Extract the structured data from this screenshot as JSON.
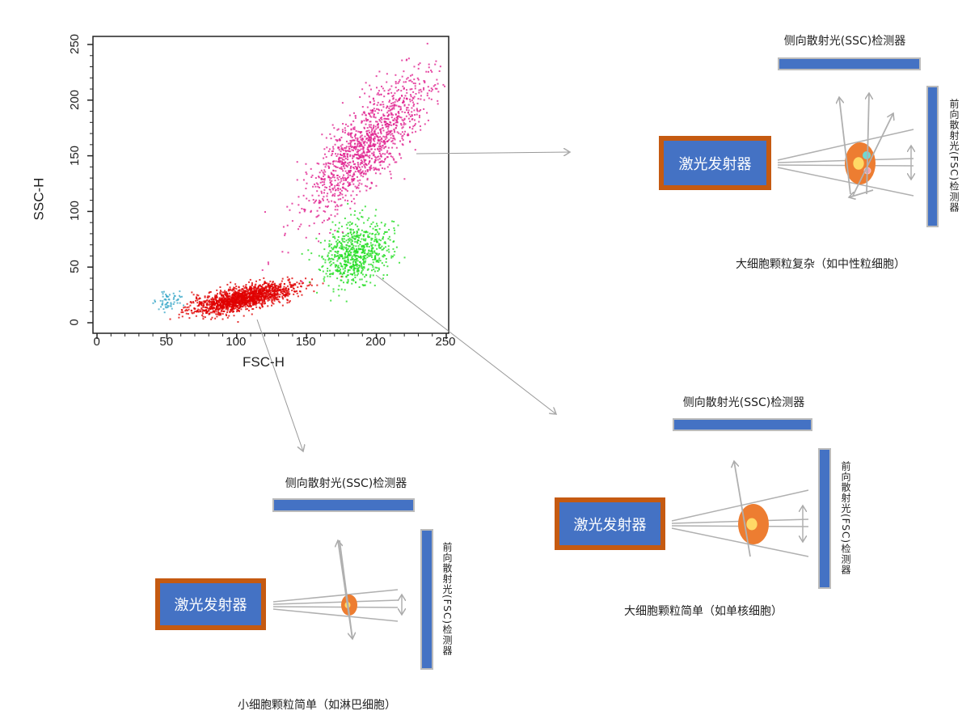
{
  "chart_data": {
    "type": "scatter",
    "xlabel": "FSC-H",
    "ylabel": "SSC-H",
    "xlim": [
      0,
      250
    ],
    "ylim": [
      0,
      250
    ],
    "x_ticks": [
      "0",
      "50",
      "100",
      "150",
      "200",
      "250"
    ],
    "y_ticks": [
      "0",
      "50",
      "100",
      "150",
      "200",
      "250"
    ],
    "grid": false,
    "clusters": [
      {
        "color": "#e00000",
        "center": [
          105,
          22
        ],
        "spread": [
          18,
          5
        ],
        "slope": 0.25,
        "count": 1600
      },
      {
        "color": "#22dd22",
        "center": [
          185,
          62
        ],
        "spread": [
          12,
          14
        ],
        "slope": 0.3,
        "count": 700
      },
      {
        "color": "#e0208f",
        "center": [
          193,
          160
        ],
        "spread": [
          13,
          32
        ],
        "slope": 1.6,
        "count": 1300
      },
      {
        "color": "#3aa8c8",
        "center": [
          52,
          20
        ],
        "spread": [
          5,
          4
        ],
        "slope": 0,
        "count": 60
      }
    ]
  },
  "diagrams": [
    {
      "ssc_label": "侧向散射光(SSC)检测器",
      "fsc_label": "前向散射光(FSC)检测器",
      "laser_label": "激光发射器",
      "caption": "大细胞颗粒复杂（如中性粒细胞）"
    },
    {
      "ssc_label": "侧向散射光(SSC)检测器",
      "fsc_label": "前向散射光(FSC)检测器",
      "laser_label": "激光发射器",
      "caption": "大细胞颗粒简单（如单核细胞）"
    },
    {
      "ssc_label": "侧向散射光(SSC)检测器",
      "fsc_label": "前向散射光(FSC)检测器",
      "laser_label": "激光发射器",
      "caption": "小细胞颗粒简单（如淋巴细胞）"
    }
  ],
  "colors": {
    "detector": "#4472c4",
    "laser_border": "#c55a11",
    "cell": "#ed7d31",
    "nucleus": "#ffd966",
    "granule_cyan": "#70d8d0",
    "granule_pink": "#f4a0b0",
    "ray": "#b0b0b0"
  }
}
